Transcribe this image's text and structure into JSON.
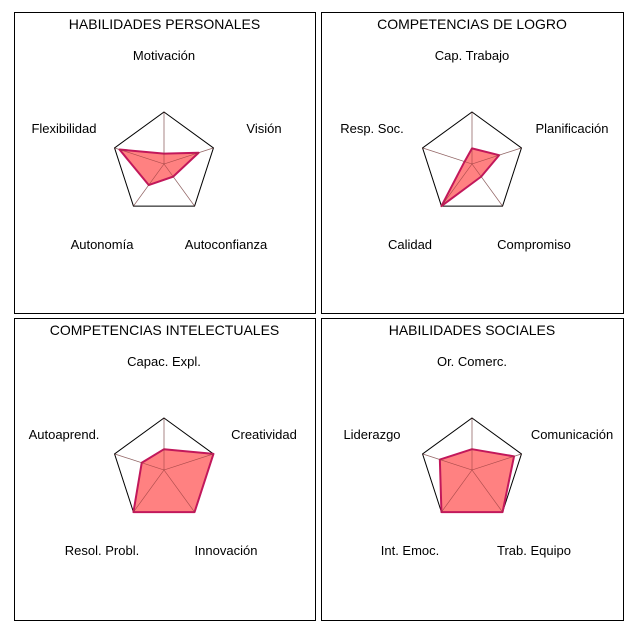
{
  "chart_data": [
    {
      "type": "radar",
      "title": "HABILIDADES PERSONALES",
      "axes": [
        "Motivación",
        "Visión",
        "Autoconfianza",
        "Autonomía",
        "Flexibilidad"
      ],
      "values": [
        0.2,
        0.7,
        0.3,
        0.5,
        0.9
      ],
      "range": [
        0,
        1
      ]
    },
    {
      "type": "radar",
      "title": "COMPETENCIAS DE LOGRO",
      "axes": [
        "Cap.   Trabajo",
        "Planificación",
        "Compromiso",
        "Calidad",
        "Resp. Soc."
      ],
      "values": [
        0.3,
        0.55,
        0.3,
        1.0,
        0.15
      ],
      "range": [
        0,
        1
      ]
    },
    {
      "type": "radar",
      "title": "COMPETENCIAS INTELECTUALES",
      "axes": [
        "Capac. Expl.",
        "Creatividad",
        "Innovación",
        "Resol.   Probl.",
        "Autoaprend."
      ],
      "values": [
        0.4,
        1.0,
        1.0,
        1.0,
        0.45
      ],
      "range": [
        0,
        1
      ]
    },
    {
      "type": "radar",
      "title": "HABILIDADES SOCIALES",
      "axes": [
        "Or.  Comerc.",
        "Comunicación",
        "Trab. Equipo",
        "Int.  Emoc.",
        "Liderazgo"
      ],
      "values": [
        0.4,
        0.85,
        1.0,
        1.0,
        0.65
      ],
      "range": [
        0,
        1
      ]
    }
  ]
}
